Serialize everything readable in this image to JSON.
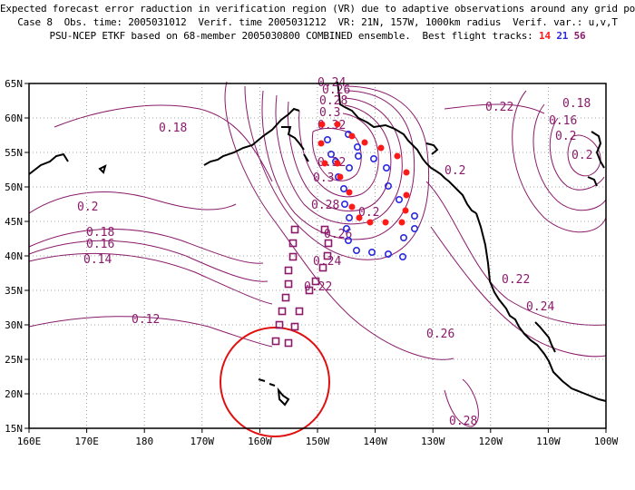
{
  "header": {
    "line1": "Expected forecast error raduction in verification region (VR) due to adaptive observations around any grid point.",
    "line2": "Case 8  Obs. time: 2005031012  Verif. time 2005031212  VR: 21N, 157W, 1000km radius  Verif. var.: u,v,T",
    "line3_prefix": "PSU-NCEP ETKF based on 68-member 2005030800 COMBINED ensemble.  Best flight tracks:",
    "tracks": [
      "14",
      "21",
      "56"
    ]
  },
  "axes": {
    "lon_labels": [
      "160E",
      "170E",
      "180",
      "170W",
      "160W",
      "150W",
      "140W",
      "130W",
      "120W",
      "110W",
      "100W"
    ],
    "lat_labels": [
      "65N",
      "60N",
      "55N",
      "50N",
      "45N",
      "40N",
      "35N",
      "30N",
      "25N",
      "20N",
      "15N"
    ]
  },
  "contour_labels": [
    "0.18",
    "0.2",
    "0.18",
    "0.16",
    "0.14",
    "0.12",
    "0.2",
    "0.22",
    "0.24",
    "0.26",
    "0.28",
    "0.3",
    "0.32",
    "0.32",
    "0.3",
    "0.28",
    "0.26",
    "0.24",
    "0.22",
    "0.2",
    "0.18",
    "0.16",
    "0.2",
    "0.2",
    "0.22",
    "0.24",
    "0.26",
    "0.28"
  ],
  "colors": {
    "contour": "#8a1a6a",
    "track14": "#ff1a1a",
    "track21": "#2a2ae0",
    "track56": "#8a1a6a",
    "vr_circle": "#e01010",
    "grid": "#888888"
  }
}
